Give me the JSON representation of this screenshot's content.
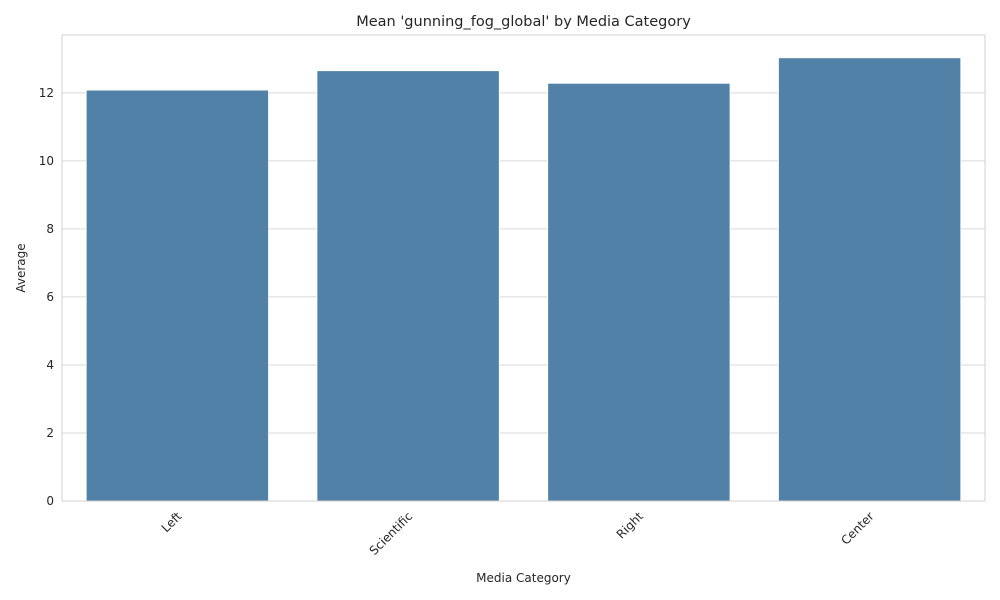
{
  "chart_data": {
    "type": "bar",
    "title": "Mean 'gunning_fog_global' by Media Category",
    "xlabel": "Media Category",
    "ylabel": "Average",
    "categories": [
      "Left",
      "Scientific",
      "Right",
      "Center"
    ],
    "values": [
      12.08,
      12.65,
      12.28,
      13.03
    ],
    "ylim": [
      0,
      13.7
    ],
    "yticks": [
      0,
      2,
      4,
      6,
      8,
      10,
      12
    ],
    "grid": true,
    "legend": "none",
    "x_tick_rotation_deg": 45,
    "colors": {
      "bar": "#5181a7",
      "grid": "#d9d9d9",
      "spine": "#d0d0d0",
      "text": "#262626"
    }
  }
}
